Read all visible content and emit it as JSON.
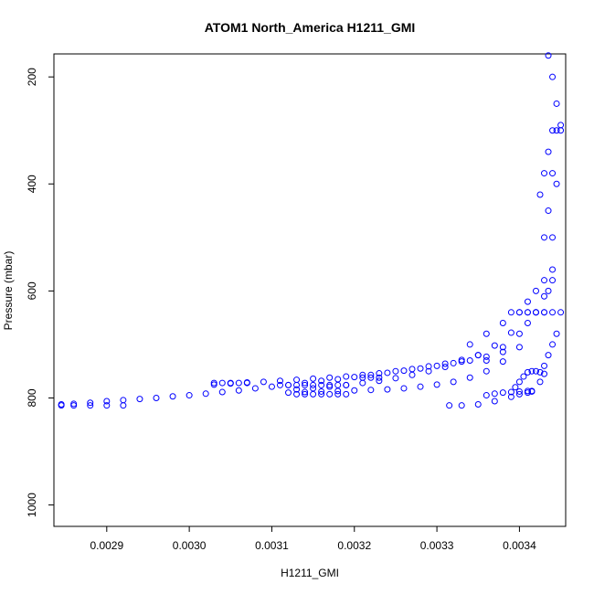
{
  "chart_data": {
    "type": "scatter",
    "title": "ATOM1 North_America H1211_GMI",
    "xlabel": "H1211_GMI",
    "ylabel": "Pressure (mbar)",
    "xlim": [
      0.002836,
      0.003456
    ],
    "ylim": [
      1040,
      157
    ],
    "y_reversed": true,
    "x_ticks": [
      0.0029,
      0.003,
      0.0031,
      0.0032,
      0.0033,
      0.0034
    ],
    "x_tick_labels": [
      "0.0029",
      "0.0030",
      "0.0031",
      "0.0032",
      "0.0033",
      "0.0034"
    ],
    "y_ticks": [
      200,
      400,
      600,
      800,
      1000
    ],
    "y_tick_labels": [
      "200",
      "400",
      "600",
      "800",
      "1000"
    ],
    "grid": false,
    "marker": "open-circle",
    "colors": {
      "points": "#0000ff",
      "axes": "#000000",
      "background": "#ffffff"
    },
    "series": [
      {
        "x": [
          0.002845,
          0.00286,
          0.00288,
          0.0029,
          0.00292,
          0.00294,
          0.00296,
          0.00298,
          0.003,
          0.00302,
          0.00304,
          0.00306,
          0.00308,
          0.0031,
          0.00312,
          0.00314,
          0.00316,
          0.00318,
          0.0032,
          0.00322,
          0.00324,
          0.00326,
          0.00328,
          0.0033,
          0.00332,
          0.00334,
          0.00336,
          0.00338
        ],
        "y": [
          812,
          811,
          809,
          806,
          804,
          802,
          800,
          797,
          795,
          792,
          789,
          786,
          782,
          779,
          776,
          772,
          768,
          765,
          761,
          757,
          753,
          749,
          745,
          740,
          735,
          730,
          723,
          714
        ]
      },
      {
        "x": [
          0.002845,
          0.00286,
          0.00288,
          0.0029,
          0.00292
        ],
        "y": [
          814,
          814,
          814,
          814,
          814
        ]
      },
      {
        "x": [
          0.00303,
          0.00305,
          0.00307,
          0.00309,
          0.00311,
          0.00313,
          0.00315,
          0.00317,
          0.00319,
          0.00321,
          0.00323,
          0.00325,
          0.00327,
          0.00329,
          0.00331,
          0.00333,
          0.00335
        ],
        "y": [
          775,
          773,
          771,
          770,
          768,
          766,
          764,
          762,
          760,
          757,
          754,
          750,
          746,
          741,
          736,
          729,
          720
        ]
      },
      {
        "x": [
          0.00303,
          0.00304,
          0.00305,
          0.00306,
          0.00307
        ],
        "y": [
          772,
          772,
          772,
          772,
          772
        ]
      },
      {
        "x": [
          0.00311,
          0.00312,
          0.00313,
          0.00314,
          0.00315,
          0.00316,
          0.00317,
          0.00318,
          0.00319
        ],
        "y": [
          776,
          776,
          776,
          776,
          776,
          776,
          776,
          776,
          776
        ]
      },
      {
        "x": [
          0.00313,
          0.00314,
          0.00315,
          0.00316,
          0.00317,
          0.00318,
          0.00319
        ],
        "y": [
          793,
          793,
          793,
          793,
          793,
          793,
          793
        ]
      },
      {
        "x": [
          0.00321,
          0.00322,
          0.00323
        ],
        "y": [
          762,
          762,
          762
        ]
      },
      {
        "x": [
          0.00312,
          0.00314,
          0.00316,
          0.00318,
          0.0032,
          0.00322,
          0.00324,
          0.00326,
          0.00328,
          0.0033,
          0.00332,
          0.00334,
          0.00336,
          0.00338,
          0.0034
        ],
        "y": [
          790,
          789,
          788,
          787,
          786,
          785,
          784,
          782,
          779,
          775,
          770,
          762,
          750,
          732,
          705
        ]
      },
      {
        "x": [
          0.00313,
          0.00315,
          0.00317,
          0.00319,
          0.00321,
          0.00323,
          0.00325,
          0.00327,
          0.00329,
          0.00331,
          0.00333,
          0.00335,
          0.00337,
          0.00339,
          0.00341
        ],
        "y": [
          784,
          782,
          779,
          776,
          772,
          768,
          763,
          757,
          750,
          742,
          732,
          720,
          702,
          678,
          640
        ]
      },
      {
        "x": [
          0.003315,
          0.00333,
          0.00335,
          0.00337,
          0.00339,
          0.0034,
          0.00341,
          0.003415
        ],
        "y": [
          814,
          814,
          812,
          806,
          798,
          793,
          790,
          788
        ]
      },
      {
        "x": [
          0.00336,
          0.00337,
          0.00338,
          0.00339,
          0.0034,
          0.00341,
          0.003415
        ],
        "y": [
          795,
          792,
          790,
          789,
          788,
          787,
          787
        ]
      },
      {
        "x": [
          0.003395,
          0.0034,
          0.003405,
          0.00341,
          0.003415,
          0.00342,
          0.003425,
          0.00343
        ],
        "y": [
          780,
          770,
          760,
          752,
          750,
          750,
          752,
          755
        ]
      },
      {
        "x": [
          0.003425,
          0.00343,
          0.003435,
          0.00344,
          0.003445
        ],
        "y": [
          770,
          740,
          720,
          700,
          680
        ]
      },
      {
        "x": [
          0.00334,
          0.00336,
          0.00338,
          0.0034,
          0.00341,
          0.00342,
          0.00343,
          0.00344
        ],
        "y": [
          700,
          680,
          660,
          640,
          620,
          600,
          580,
          560
        ]
      },
      {
        "x": [
          0.00336,
          0.00338,
          0.0034,
          0.00341,
          0.00342,
          0.00343,
          0.00344
        ],
        "y": [
          730,
          705,
          680,
          660,
          640,
          610,
          580
        ]
      },
      {
        "x": [
          0.00339,
          0.0034,
          0.00341,
          0.00342,
          0.00343
        ],
        "y": [
          640,
          640,
          640,
          640,
          640
        ]
      },
      {
        "x": [
          0.00342,
          0.00343,
          0.00344,
          0.00345
        ],
        "y": [
          640,
          640,
          640,
          640
        ]
      },
      {
        "x": [
          0.003425,
          0.00343,
          0.003435,
          0.00344
        ],
        "y": [
          420,
          380,
          340,
          300
        ]
      },
      {
        "x": [
          0.00343,
          0.003435,
          0.00344,
          0.003445
        ],
        "y": [
          500,
          450,
          380,
          300
        ]
      },
      {
        "x": [
          0.003435,
          0.00344,
          0.003445,
          0.00345
        ],
        "y": [
          600,
          500,
          400,
          300
        ]
      },
      {
        "x": [
          0.003435,
          0.00344,
          0.003445,
          0.00345
        ],
        "y": [
          160,
          200,
          250,
          290
        ]
      }
    ]
  }
}
